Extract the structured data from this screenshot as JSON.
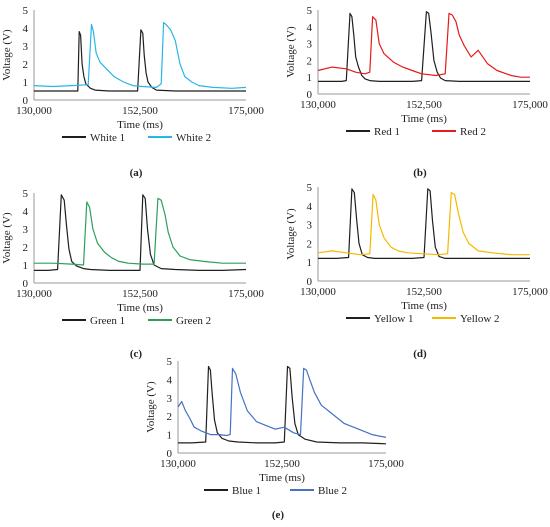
{
  "chart_data": [
    {
      "type": "line",
      "panel_label": "(a)",
      "xlabel": "Time (ms)",
      "ylabel": "Voltage (V)",
      "xlim": [
        130000,
        175000
      ],
      "ylim": [
        0,
        5
      ],
      "xticks": [
        "130,000",
        "152,500",
        "175,000"
      ],
      "yticks": [
        "0",
        "1",
        "2",
        "3",
        "4",
        "5"
      ],
      "legend_position": "bottom",
      "series": [
        {
          "name": "White 1",
          "color": "#1f1f1f",
          "x": [
            130000,
            134000,
            138000,
            139300,
            139600,
            139900,
            140200,
            140600,
            141000,
            142000,
            143000,
            146000,
            150000,
            151000,
            152000,
            152700,
            153100,
            153400,
            153800,
            154200,
            155000,
            156000,
            160000,
            165000,
            170000,
            175000
          ],
          "y": [
            0.5,
            0.5,
            0.5,
            0.5,
            3.8,
            3.6,
            2.0,
            1.3,
            0.9,
            0.65,
            0.55,
            0.5,
            0.5,
            0.5,
            0.5,
            3.9,
            3.7,
            2.5,
            1.5,
            1.0,
            0.7,
            0.55,
            0.5,
            0.5,
            0.5,
            0.5
          ]
        },
        {
          "name": "White 2",
          "color": "#29b5e8",
          "x": [
            130000,
            134000,
            138000,
            141500,
            142200,
            142600,
            143200,
            144000,
            145500,
            147000,
            149000,
            151000,
            153000,
            156000,
            157000,
            157500,
            158000,
            159000,
            160000,
            161000,
            162000,
            163500,
            165000,
            168000,
            172000,
            175000
          ],
          "y": [
            0.8,
            0.75,
            0.8,
            0.85,
            4.2,
            3.8,
            2.6,
            2.1,
            1.7,
            1.3,
            1.0,
            0.8,
            0.75,
            0.7,
            0.9,
            4.3,
            4.2,
            3.9,
            3.3,
            2.0,
            1.3,
            1.0,
            0.8,
            0.7,
            0.65,
            0.7
          ]
        }
      ]
    },
    {
      "type": "line",
      "panel_label": "(b)",
      "xlabel": "Time (ms)",
      "ylabel": "Voltage (V)",
      "xlim": [
        130000,
        175000
      ],
      "ylim": [
        0,
        5
      ],
      "xticks": [
        "130,000",
        "152,500",
        "175,000"
      ],
      "yticks": [
        "0",
        "1",
        "2",
        "3",
        "4",
        "5"
      ],
      "legend_position": "bottom",
      "series": [
        {
          "name": "Red 1",
          "color": "#1f1f1f",
          "x": [
            130000,
            135000,
            136000,
            136800,
            137200,
            137600,
            138000,
            138600,
            139300,
            140000,
            141000,
            143000,
            147000,
            150000,
            152000,
            153000,
            153500,
            154000,
            154600,
            155300,
            156000,
            157000,
            160000,
            165000,
            170000,
            175000
          ],
          "y": [
            0.75,
            0.75,
            0.8,
            4.8,
            4.6,
            3.5,
            2.2,
            1.6,
            1.1,
            0.9,
            0.8,
            0.75,
            0.75,
            0.75,
            0.8,
            4.9,
            4.8,
            3.6,
            2.0,
            1.3,
            0.95,
            0.8,
            0.75,
            0.75,
            0.75,
            0.75
          ]
        },
        {
          "name": "Red 2",
          "color": "#e41a1c",
          "x": [
            130000,
            133000,
            136000,
            138000,
            140000,
            141000,
            141600,
            142300,
            143000,
            144000,
            146000,
            148000,
            150000,
            152000,
            155000,
            157000,
            157800,
            158500,
            159300,
            160000,
            161000,
            162500,
            164000,
            166000,
            168000,
            171000,
            173000,
            175000
          ],
          "y": [
            1.4,
            1.6,
            1.5,
            1.3,
            1.2,
            1.3,
            4.6,
            4.4,
            3.0,
            2.4,
            1.9,
            1.6,
            1.4,
            1.2,
            1.1,
            1.2,
            4.8,
            4.7,
            4.3,
            3.5,
            2.9,
            2.2,
            2.6,
            1.8,
            1.4,
            1.1,
            1.0,
            1.0
          ]
        }
      ]
    },
    {
      "type": "line",
      "panel_label": "(c)",
      "xlabel": "Time (ms)",
      "ylabel": "Voltage (V)",
      "xlim": [
        130000,
        175000
      ],
      "ylim": [
        0,
        5
      ],
      "xticks": [
        "130,000",
        "152,500",
        "175,000"
      ],
      "yticks": [
        "0",
        "1",
        "2",
        "3",
        "4",
        "5"
      ],
      "legend_position": "bottom",
      "series": [
        {
          "name": "Green 1",
          "color": "#1f1f1f",
          "x": [
            130000,
            133000,
            135000,
            135800,
            136400,
            136900,
            137400,
            138000,
            139000,
            140500,
            142000,
            146000,
            150000,
            152500,
            153100,
            153600,
            154100,
            154700,
            155500,
            157000,
            160000,
            165000,
            170000,
            175000
          ],
          "y": [
            0.7,
            0.7,
            0.75,
            4.9,
            4.6,
            3.2,
            1.9,
            1.2,
            0.95,
            0.8,
            0.75,
            0.7,
            0.7,
            0.7,
            4.9,
            4.7,
            3.0,
            1.6,
            1.0,
            0.8,
            0.75,
            0.7,
            0.7,
            0.75
          ]
        },
        {
          "name": "Green 2",
          "color": "#2ca05a",
          "x": [
            130000,
            134000,
            138000,
            140500,
            141200,
            141800,
            142500,
            143500,
            145000,
            146500,
            148000,
            150000,
            153000,
            155500,
            156300,
            157000,
            157800,
            158500,
            159500,
            161000,
            163000,
            166000,
            170000,
            175000
          ],
          "y": [
            1.1,
            1.1,
            1.05,
            1.0,
            4.5,
            4.2,
            3.0,
            2.2,
            1.7,
            1.4,
            1.2,
            1.1,
            1.05,
            1.05,
            4.7,
            4.6,
            3.8,
            2.8,
            2.0,
            1.5,
            1.3,
            1.2,
            1.1,
            1.1
          ]
        }
      ]
    },
    {
      "type": "line",
      "panel_label": "(d)",
      "xlabel": "Time (ms)",
      "ylabel": "Voltage (V)",
      "xlim": [
        130000,
        175000
      ],
      "ylim": [
        0,
        5
      ],
      "xticks": [
        "130,000",
        "152,500",
        "175,000"
      ],
      "yticks": [
        "0",
        "1",
        "2",
        "3",
        "4",
        "5"
      ],
      "legend_position": "bottom",
      "series": [
        {
          "name": "Yellow 1",
          "color": "#1f1f1f",
          "x": [
            130000,
            134000,
            136500,
            137200,
            137700,
            138200,
            138700,
            139400,
            140500,
            142000,
            145000,
            150000,
            152500,
            153300,
            153800,
            154300,
            154900,
            155700,
            157000,
            160000,
            165000,
            170000,
            175000
          ],
          "y": [
            1.2,
            1.2,
            1.25,
            4.9,
            4.7,
            3.3,
            2.0,
            1.4,
            1.25,
            1.2,
            1.2,
            1.2,
            1.25,
            4.9,
            4.8,
            3.2,
            1.8,
            1.3,
            1.2,
            1.2,
            1.2,
            1.2,
            1.2
          ]
        },
        {
          "name": "Yellow 2",
          "color": "#f5b800",
          "x": [
            130000,
            133000,
            136000,
            139000,
            141000,
            141700,
            142300,
            143000,
            144000,
            145500,
            147000,
            149000,
            152000,
            155500,
            157500,
            158300,
            159000,
            159800,
            160800,
            162000,
            164000,
            167000,
            171000,
            175000
          ],
          "y": [
            1.5,
            1.6,
            1.5,
            1.4,
            1.45,
            4.6,
            4.3,
            3.0,
            2.3,
            1.8,
            1.6,
            1.5,
            1.45,
            1.4,
            1.45,
            4.7,
            4.6,
            3.6,
            2.6,
            2.0,
            1.6,
            1.5,
            1.4,
            1.4
          ]
        }
      ]
    },
    {
      "type": "line",
      "panel_label": "(e)",
      "xlabel": "Time (ms)",
      "ylabel": "Voltage (V)",
      "xlim": [
        130000,
        175000
      ],
      "ylim": [
        0,
        5
      ],
      "xticks": [
        "130,000",
        "152,500",
        "175,000"
      ],
      "yticks": [
        "0",
        "1",
        "2",
        "3",
        "4",
        "5"
      ],
      "legend_position": "bottom",
      "series": [
        {
          "name": "Blue 1",
          "color": "#1f1f1f",
          "x": [
            130000,
            133000,
            136000,
            136600,
            137000,
            137400,
            137900,
            138500,
            139500,
            141000,
            143000,
            147000,
            151000,
            153000,
            153700,
            154200,
            154700,
            155300,
            156000,
            157500,
            160000,
            165000,
            170000,
            175000
          ],
          "y": [
            0.55,
            0.55,
            0.6,
            4.7,
            4.5,
            3.2,
            1.8,
            1.1,
            0.8,
            0.65,
            0.6,
            0.55,
            0.55,
            0.6,
            4.7,
            4.6,
            3.0,
            1.6,
            1.0,
            0.75,
            0.6,
            0.55,
            0.55,
            0.5
          ]
        },
        {
          "name": "Blue 2",
          "color": "#4472c4",
          "x": [
            130000,
            130800,
            131600,
            132500,
            133500,
            135000,
            137000,
            139000,
            140500,
            141300,
            141800,
            142500,
            143500,
            145000,
            147000,
            149000,
            151000,
            153000,
            155000,
            156500,
            157200,
            157800,
            158500,
            159500,
            161000,
            163000,
            166000,
            169000,
            172000,
            175000
          ],
          "y": [
            2.5,
            2.8,
            2.3,
            1.9,
            1.4,
            1.2,
            1.0,
            1.0,
            0.95,
            1.0,
            4.6,
            4.3,
            3.3,
            2.3,
            1.7,
            1.5,
            1.3,
            1.4,
            1.1,
            1.0,
            4.6,
            4.5,
            4.0,
            3.3,
            2.6,
            2.2,
            1.6,
            1.3,
            1.0,
            0.85
          ]
        }
      ]
    }
  ]
}
